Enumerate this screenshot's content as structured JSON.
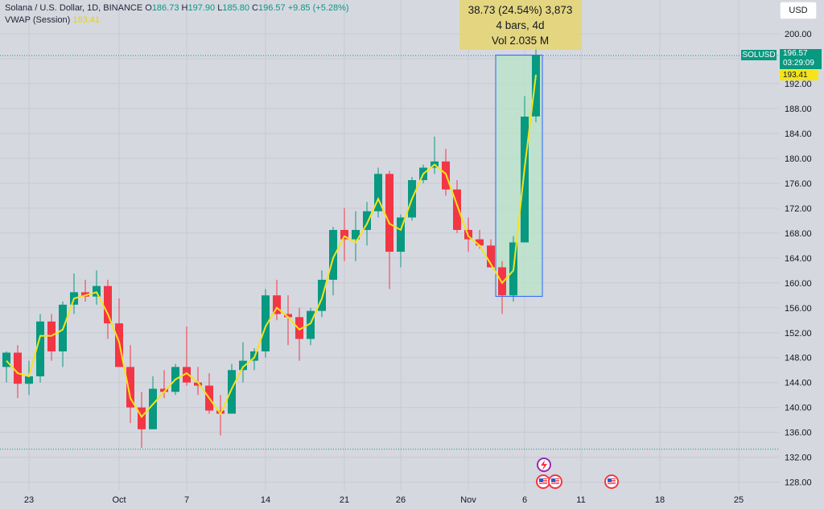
{
  "legend": {
    "symbol_desc": "Solana / U.S. Dollar, 1D, BINANCE",
    "o_label": "O",
    "o_value": "186.73",
    "h_label": "H",
    "h_value": "197.90",
    "l_label": "L",
    "l_value": "185.80",
    "c_label": "C",
    "c_value": "196.57",
    "change": "+9.85 (+5.28%)",
    "vwap_label": "VWAP (Session)",
    "vwap_value": "193.41"
  },
  "currency_button": "USD",
  "measure": {
    "line1": "38.73 (24.54%) 3,873",
    "line2": "4 bars, 4d",
    "line3": "Vol 2.035 M"
  },
  "price_scale_tags": {
    "symbol": "SOLUSD",
    "last_price": "196.57",
    "countdown": "03:29:09",
    "vwap": "193.41"
  },
  "colors": {
    "up": "#089981",
    "down": "#f23645",
    "vwap": "#f5e31b",
    "measure_fill": "#b7e4c7",
    "measure_border": "#2962ff",
    "background": "#d6d8e0"
  },
  "event_icons": [
    "lightning-icon",
    "us-flag-icon",
    "us-flag-icon",
    "us-flag-icon"
  ],
  "chart_data": {
    "type": "candlestick",
    "y_axis": {
      "range": [
        124,
        203
      ],
      "ticks": [
        "200.00",
        "196.00",
        "192.00",
        "188.00",
        "184.00",
        "180.00",
        "176.00",
        "172.00",
        "168.00",
        "164.00",
        "160.00",
        "156.00",
        "152.00",
        "148.00",
        "144.00",
        "140.00",
        "136.00",
        "132.00",
        "128.00"
      ]
    },
    "x_axis": {
      "ticks": [
        {
          "label": "23",
          "index": 2
        },
        {
          "label": "Oct",
          "index": 10
        },
        {
          "label": "7",
          "index": 16
        },
        {
          "label": "14",
          "index": 23
        },
        {
          "label": "21",
          "index": 30
        },
        {
          "label": "26",
          "index": 35
        },
        {
          "label": "Nov",
          "index": 41
        },
        {
          "label": "6",
          "index": 46
        },
        {
          "label": "11",
          "index": 51
        },
        {
          "label": "18",
          "index": 58
        },
        {
          "label": "25",
          "index": 65
        }
      ]
    },
    "candles": [
      {
        "o": 146.5,
        "h": 149.0,
        "l": 144.0,
        "c": 148.8
      },
      {
        "o": 148.8,
        "h": 150.0,
        "l": 141.5,
        "c": 143.8
      },
      {
        "o": 143.8,
        "h": 147.5,
        "l": 142.0,
        "c": 145.0
      },
      {
        "o": 145.0,
        "h": 155.0,
        "l": 144.0,
        "c": 153.8
      },
      {
        "o": 153.8,
        "h": 155.0,
        "l": 147.5,
        "c": 149.0
      },
      {
        "o": 149.0,
        "h": 157.0,
        "l": 146.5,
        "c": 156.5
      },
      {
        "o": 156.5,
        "h": 161.5,
        "l": 155.0,
        "c": 158.5
      },
      {
        "o": 158.5,
        "h": 160.5,
        "l": 157.0,
        "c": 157.8
      },
      {
        "o": 157.8,
        "h": 162.0,
        "l": 156.5,
        "c": 159.5
      },
      {
        "o": 159.5,
        "h": 160.5,
        "l": 151.0,
        "c": 153.5
      },
      {
        "o": 153.5,
        "h": 157.5,
        "l": 147.0,
        "c": 146.5
      },
      {
        "o": 146.5,
        "h": 150.0,
        "l": 137.5,
        "c": 140.0
      },
      {
        "o": 140.0,
        "h": 142.5,
        "l": 133.5,
        "c": 136.5
      },
      {
        "o": 136.5,
        "h": 145.0,
        "l": 136.5,
        "c": 143.0
      },
      {
        "o": 143.0,
        "h": 146.0,
        "l": 141.5,
        "c": 142.5
      },
      {
        "o": 142.5,
        "h": 147.0,
        "l": 142.0,
        "c": 146.5
      },
      {
        "o": 146.5,
        "h": 153.0,
        "l": 143.5,
        "c": 144.0
      },
      {
        "o": 144.0,
        "h": 146.5,
        "l": 142.0,
        "c": 143.5
      },
      {
        "o": 143.5,
        "h": 145.5,
        "l": 139.0,
        "c": 139.5
      },
      {
        "o": 139.5,
        "h": 142.0,
        "l": 135.5,
        "c": 139.0
      },
      {
        "o": 139.0,
        "h": 147.0,
        "l": 139.0,
        "c": 146.0
      },
      {
        "o": 146.0,
        "h": 150.5,
        "l": 144.0,
        "c": 147.5
      },
      {
        "o": 147.5,
        "h": 149.5,
        "l": 146.0,
        "c": 149.0
      },
      {
        "o": 149.0,
        "h": 159.0,
        "l": 148.0,
        "c": 158.0
      },
      {
        "o": 158.0,
        "h": 160.5,
        "l": 154.0,
        "c": 155.0
      },
      {
        "o": 155.0,
        "h": 158.0,
        "l": 150.0,
        "c": 154.5
      },
      {
        "o": 154.5,
        "h": 156.0,
        "l": 147.5,
        "c": 151.0
      },
      {
        "o": 151.0,
        "h": 156.0,
        "l": 150.0,
        "c": 155.5
      },
      {
        "o": 155.5,
        "h": 162.0,
        "l": 154.5,
        "c": 160.5
      },
      {
        "o": 160.5,
        "h": 169.0,
        "l": 158.0,
        "c": 168.5
      },
      {
        "o": 168.5,
        "h": 172.0,
        "l": 163.5,
        "c": 167.0
      },
      {
        "o": 167.0,
        "h": 171.5,
        "l": 163.5,
        "c": 168.5
      },
      {
        "o": 168.5,
        "h": 173.0,
        "l": 166.0,
        "c": 171.5
      },
      {
        "o": 171.5,
        "h": 178.5,
        "l": 170.5,
        "c": 177.5
      },
      {
        "o": 177.5,
        "h": 178.0,
        "l": 159.0,
        "c": 165.0
      },
      {
        "o": 165.0,
        "h": 171.0,
        "l": 162.5,
        "c": 170.5
      },
      {
        "o": 170.5,
        "h": 177.0,
        "l": 170.0,
        "c": 176.5
      },
      {
        "o": 176.5,
        "h": 179.0,
        "l": 176.0,
        "c": 178.5
      },
      {
        "o": 178.5,
        "h": 183.5,
        "l": 177.5,
        "c": 179.5
      },
      {
        "o": 179.5,
        "h": 181.5,
        "l": 174.0,
        "c": 175.0
      },
      {
        "o": 175.0,
        "h": 176.5,
        "l": 168.0,
        "c": 168.5
      },
      {
        "o": 168.5,
        "h": 170.5,
        "l": 165.0,
        "c": 167.0
      },
      {
        "o": 167.0,
        "h": 168.5,
        "l": 165.5,
        "c": 166.0
      },
      {
        "o": 166.0,
        "h": 167.0,
        "l": 162.5,
        "c": 162.5
      },
      {
        "o": 162.5,
        "h": 163.5,
        "l": 155.0,
        "c": 158.0
      },
      {
        "o": 158.0,
        "h": 167.5,
        "l": 157.0,
        "c": 166.5
      },
      {
        "o": 166.5,
        "h": 190.0,
        "l": 166.5,
        "c": 186.7
      },
      {
        "o": 186.73,
        "h": 197.9,
        "l": 185.8,
        "c": 196.57
      }
    ],
    "vwap": [
      {
        "i": 0,
        "v": 147.5
      },
      {
        "i": 1,
        "v": 145.5
      },
      {
        "i": 2,
        "v": 145.0
      },
      {
        "i": 3,
        "v": 151.5
      },
      {
        "i": 4,
        "v": 151.5
      },
      {
        "i": 5,
        "v": 152.5
      },
      {
        "i": 6,
        "v": 157.5
      },
      {
        "i": 7,
        "v": 158.0
      },
      {
        "i": 8,
        "v": 158.5
      },
      {
        "i": 9,
        "v": 155.0
      },
      {
        "i": 10,
        "v": 150.5
      },
      {
        "i": 11,
        "v": 141.5
      },
      {
        "i": 12,
        "v": 138.5
      },
      {
        "i": 13,
        "v": 140.5
      },
      {
        "i": 14,
        "v": 142.5
      },
      {
        "i": 15,
        "v": 144.5
      },
      {
        "i": 16,
        "v": 145.5
      },
      {
        "i": 17,
        "v": 144.0
      },
      {
        "i": 18,
        "v": 141.5
      },
      {
        "i": 19,
        "v": 139.0
      },
      {
        "i": 20,
        "v": 143.0
      },
      {
        "i": 21,
        "v": 146.5
      },
      {
        "i": 22,
        "v": 148.0
      },
      {
        "i": 23,
        "v": 153.0
      },
      {
        "i": 24,
        "v": 156.0
      },
      {
        "i": 25,
        "v": 154.5
      },
      {
        "i": 26,
        "v": 152.5
      },
      {
        "i": 27,
        "v": 153.5
      },
      {
        "i": 28,
        "v": 157.5
      },
      {
        "i": 29,
        "v": 164.0
      },
      {
        "i": 30,
        "v": 167.5
      },
      {
        "i": 31,
        "v": 166.5
      },
      {
        "i": 32,
        "v": 169.5
      },
      {
        "i": 33,
        "v": 173.5
      },
      {
        "i": 34,
        "v": 169.5
      },
      {
        "i": 35,
        "v": 168.5
      },
      {
        "i": 36,
        "v": 173.5
      },
      {
        "i": 37,
        "v": 177.5
      },
      {
        "i": 38,
        "v": 179.0
      },
      {
        "i": 39,
        "v": 177.5
      },
      {
        "i": 40,
        "v": 172.5
      },
      {
        "i": 41,
        "v": 167.5
      },
      {
        "i": 42,
        "v": 166.0
      },
      {
        "i": 43,
        "v": 163.0
      },
      {
        "i": 44,
        "v": 160.0
      },
      {
        "i": 45,
        "v": 162.0
      },
      {
        "i": 46,
        "v": 178.5
      },
      {
        "i": 47,
        "v": 193.41
      }
    ],
    "last_price_line": 196.57,
    "base_line": 133.3,
    "measure_range": {
      "from_index": 44,
      "to_index": 47,
      "from_price": 157.84,
      "to_price": 196.57
    }
  }
}
